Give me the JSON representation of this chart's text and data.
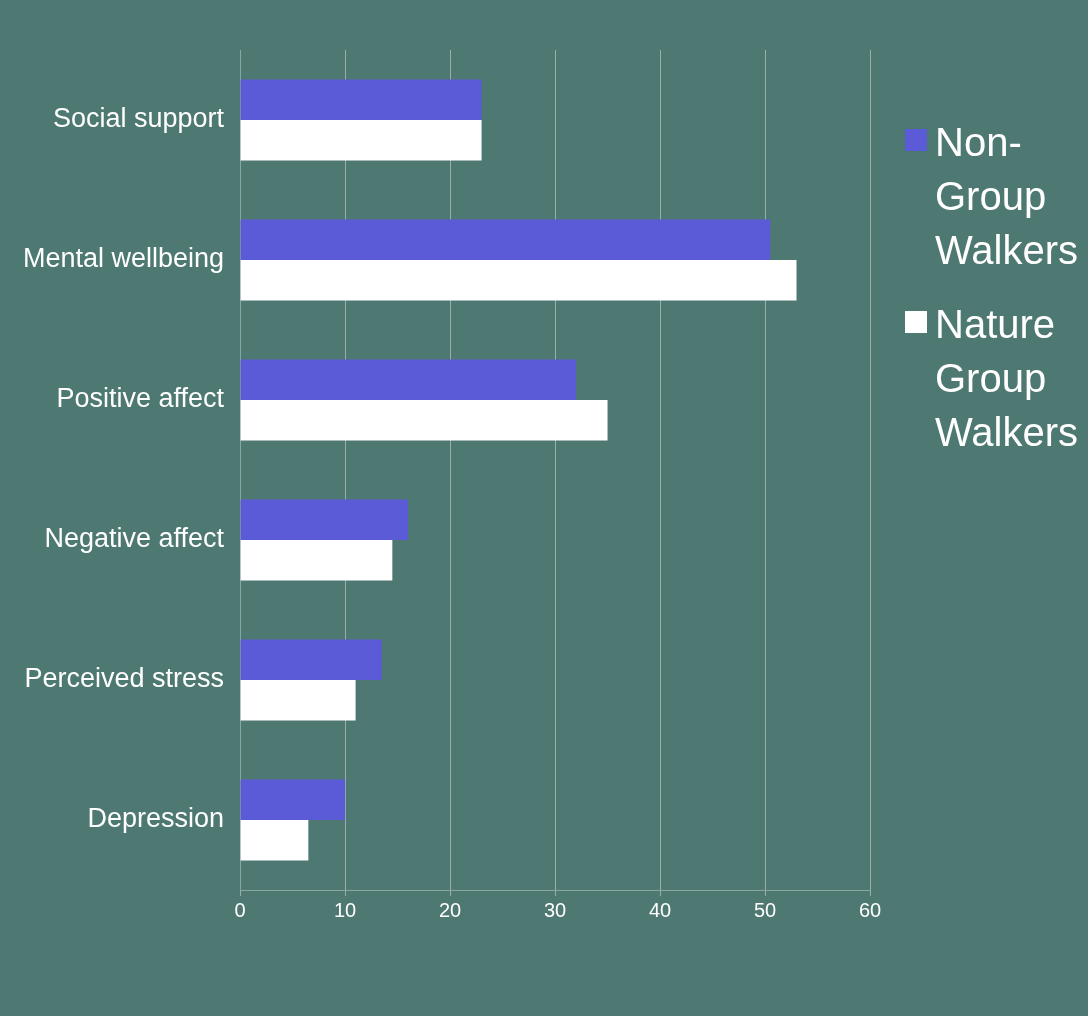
{
  "chart_data": {
    "type": "bar",
    "orientation": "horizontal",
    "categories": [
      "Social support",
      "Mental wellbeing",
      "Positive affect",
      "Negative affect",
      "Perceived stress",
      "Depression"
    ],
    "series": [
      {
        "name": "Non-Group Walkers",
        "color": "#5b5bd8",
        "values": [
          23,
          50.5,
          32,
          16,
          13.5,
          10
        ]
      },
      {
        "name": "Nature Group Walkers",
        "color": "#ffffff",
        "values": [
          23,
          53,
          35,
          14.5,
          11,
          6.5
        ]
      }
    ],
    "xlim": [
      0,
      60
    ],
    "xticks": [
      0,
      10,
      20,
      30,
      40,
      50,
      60
    ],
    "grid": "x",
    "legend": "right"
  }
}
